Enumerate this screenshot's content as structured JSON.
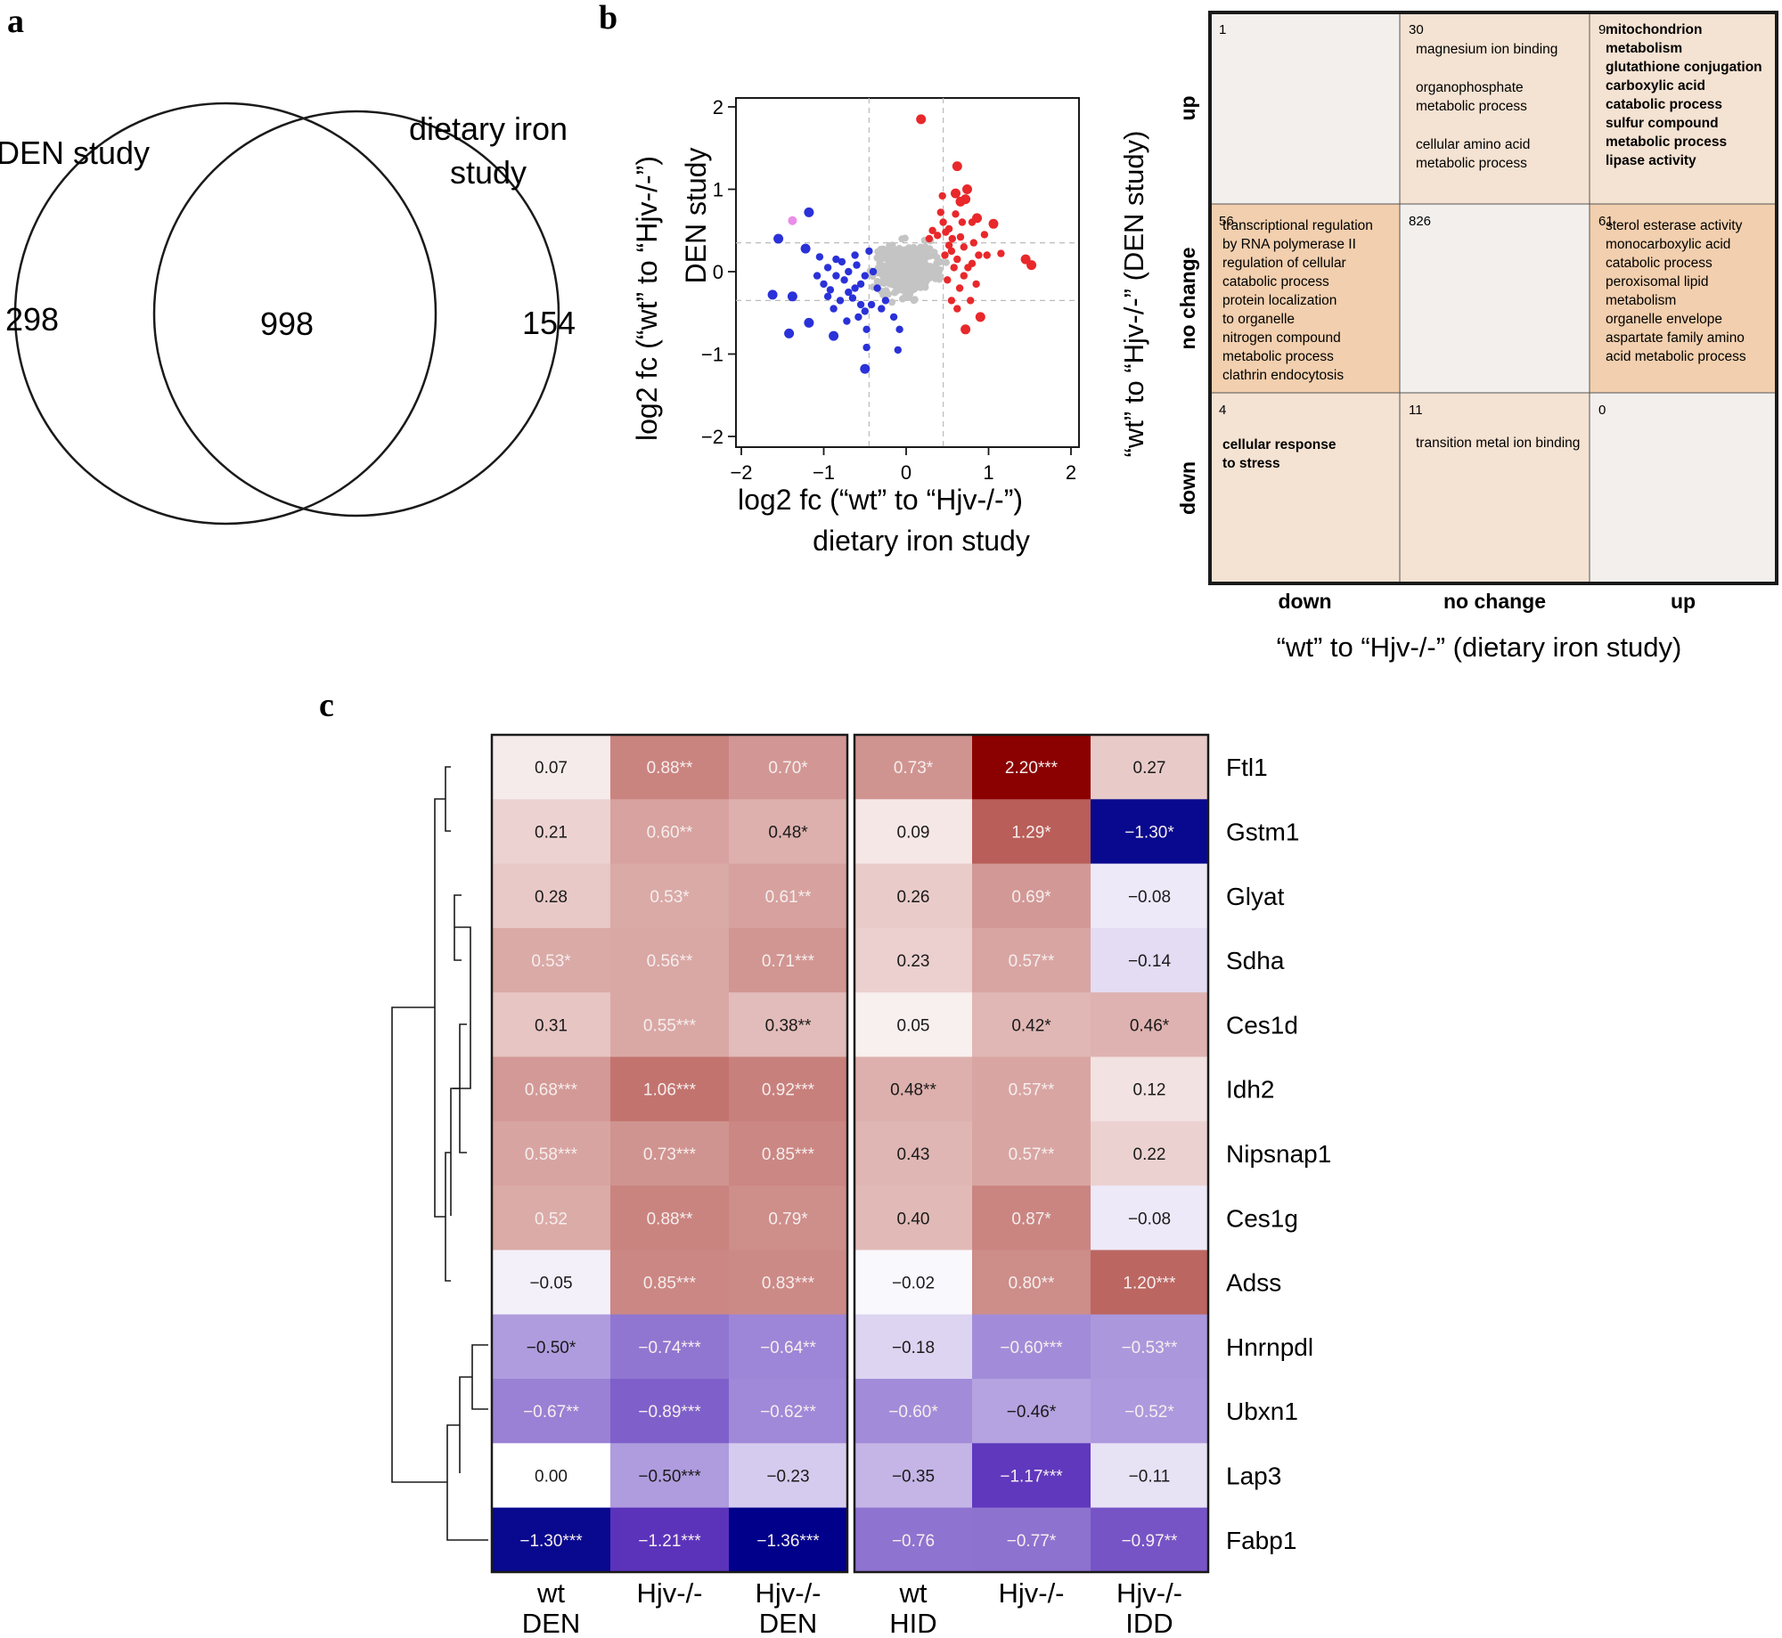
{
  "panels": {
    "a": {
      "letter": "a",
      "venn": {
        "set1_label": "DEN study",
        "set2_label_line1": "dietary iron",
        "set2_label_line2": "study",
        "only1": "298",
        "both": "998",
        "only2": "154"
      }
    },
    "b": {
      "letter": "b",
      "scatter": {
        "xlabel_line1": "log2 fc (“wt” to “Hjv-/-”)",
        "xlabel_line2": "dietary iron study",
        "ylabel_line1": "log2 fc (“wt” to “Hjv-/-”)",
        "ylabel_line2": "DEN study",
        "xticks": [
          "−2",
          "−1",
          "0",
          "1",
          "2"
        ],
        "yticks": [
          "2",
          "1",
          "0",
          "−1",
          "−2"
        ]
      },
      "grid": {
        "col_labels": [
          "down",
          "no change",
          "up"
        ],
        "row_labels": [
          "up",
          "no change",
          "down"
        ],
        "xlabel": "“wt” to “Hjv-/-” (dietary iron study)",
        "ylabel": "“wt” to “Hjv-/-” (DEN study)",
        "cells": [
          {
            "count": "1",
            "terms": []
          },
          {
            "count": "30",
            "terms": [
              "magnesium ion binding",
              "",
              "organophosphate",
              "metabolic process",
              "",
              "cellular amino acid",
              "metabolic process"
            ]
          },
          {
            "count": "9",
            "terms": [
              "mitochondrion",
              "metabolism",
              "glutathione conjugation",
              "carboxylic acid",
              "catabolic process",
              "sulfur compound",
              "metabolic process",
              "lipase activity"
            ]
          },
          {
            "count": "56",
            "terms": [
              "transcriptional regulation",
              "by RNA polymerase II",
              "regulation of cellular",
              "catabolic process",
              "protein localization",
              " to organelle",
              "nitrogen compound",
              "metabolic process",
              "clathrin endocytosis"
            ]
          },
          {
            "count": "826",
            "terms": []
          },
          {
            "count": "61",
            "terms": [
              "sterol esterase activity",
              "monocarboxylic acid",
              "catabolic process",
              "peroxisomal lipid",
              "metabolism",
              "organelle envelope",
              "aspartate family amino",
              "acid metabolic process"
            ]
          },
          {
            "count": "4",
            "terms": [
              "cellular response",
              "to stress"
            ]
          },
          {
            "count": "11",
            "terms": [
              "transition metal ion binding"
            ]
          },
          {
            "count": "0",
            "terms": []
          }
        ],
        "colors": [
          "#f2efed",
          "#f4e2d2",
          "#f4e2d2",
          "#f2cfae",
          "#f2efed",
          "#f2cfae",
          "#f4e2d2",
          "#f4e2d2",
          "#f2efed"
        ]
      }
    },
    "c": {
      "letter": "c"
    }
  },
  "chart_data": [
    {
      "type": "scatter",
      "panel": "b",
      "xlabel": "log2 fc (“wt” to “Hjv-/-”) dietary iron study",
      "ylabel": "log2 fc (“wt” to “Hjv-/-”) DEN study",
      "xlim": [
        -2.2,
        2.1
      ],
      "ylim": [
        -2.1,
        2.1
      ],
      "threshold_lines_x": [
        -0.45,
        0.45
      ],
      "threshold_lines_y": [
        -0.35,
        0.35
      ],
      "series": [
        {
          "name": "up",
          "color": "#e8282b",
          "points": [
            [
              0.18,
              1.85
            ],
            [
              0.62,
              1.28
            ],
            [
              0.44,
              0.92
            ],
            [
              0.72,
              0.88
            ],
            [
              0.6,
              0.95
            ],
            [
              0.86,
              0.65
            ],
            [
              1.06,
              0.58
            ],
            [
              0.32,
              0.5
            ],
            [
              0.48,
              0.48
            ],
            [
              0.38,
              0.44
            ],
            [
              0.52,
              0.52
            ],
            [
              0.66,
              0.42
            ],
            [
              0.8,
              0.6
            ],
            [
              0.95,
              0.45
            ],
            [
              1.15,
              0.22
            ],
            [
              1.45,
              0.15
            ],
            [
              1.52,
              0.08
            ],
            [
              0.55,
              0.25
            ],
            [
              0.62,
              0.15
            ],
            [
              0.75,
              0.05
            ],
            [
              0.7,
              0.3
            ],
            [
              0.58,
              0.05
            ],
            [
              0.88,
              0.2
            ],
            [
              0.5,
              -0.1
            ],
            [
              0.65,
              -0.2
            ],
            [
              0.78,
              -0.35
            ],
            [
              0.9,
              -0.55
            ],
            [
              0.72,
              -0.7
            ],
            [
              0.55,
              -0.35
            ],
            [
              0.42,
              0.72
            ],
            [
              0.28,
              0.4
            ],
            [
              0.68,
              0.6
            ],
            [
              0.82,
              0.35
            ],
            [
              0.6,
              0.7
            ],
            [
              0.74,
              1.0
            ],
            [
              0.52,
              0.32
            ],
            [
              0.45,
              0.6
            ],
            [
              0.98,
              0.2
            ],
            [
              0.85,
              -0.15
            ],
            [
              0.62,
              -0.45
            ],
            [
              0.47,
              0.2
            ],
            [
              0.7,
              -0.05
            ],
            [
              0.56,
              0.4
            ],
            [
              0.8,
              0.1
            ],
            [
              0.66,
              0.85
            ]
          ]
        },
        {
          "name": "down",
          "color": "#2a31d8",
          "points": [
            [
              -1.18,
              0.72
            ],
            [
              -1.22,
              0.28
            ],
            [
              -1.05,
              0.18
            ],
            [
              -0.95,
              0.05
            ],
            [
              -0.85,
              -0.05
            ],
            [
              -0.75,
              -0.1
            ],
            [
              -0.92,
              -0.22
            ],
            [
              -0.7,
              -0.25
            ],
            [
              -0.62,
              -0.2
            ],
            [
              -0.55,
              -0.15
            ],
            [
              -0.8,
              -0.35
            ],
            [
              -0.88,
              -0.45
            ],
            [
              -1.0,
              -0.15
            ],
            [
              -1.38,
              -0.3
            ],
            [
              -1.55,
              0.4
            ],
            [
              -1.62,
              -0.28
            ],
            [
              -1.42,
              -0.75
            ],
            [
              -1.18,
              -0.62
            ],
            [
              -0.88,
              -0.78
            ],
            [
              -0.5,
              -0.48
            ],
            [
              -0.48,
              -0.92
            ],
            [
              -0.5,
              -1.18
            ],
            [
              -0.48,
              -0.7
            ],
            [
              -0.42,
              -0.4
            ],
            [
              -0.55,
              -0.4
            ],
            [
              -0.15,
              -0.55
            ],
            [
              -0.1,
              -0.95
            ],
            [
              -0.08,
              -0.7
            ],
            [
              -0.25,
              -0.35
            ],
            [
              -0.45,
              0.25
            ],
            [
              -0.6,
              0.08
            ],
            [
              -0.7,
              0.0
            ],
            [
              -0.78,
              0.12
            ],
            [
              -0.65,
              -0.32
            ],
            [
              -0.95,
              -0.3
            ],
            [
              -1.08,
              -0.05
            ],
            [
              -0.4,
              0.0
            ],
            [
              -0.35,
              -0.2
            ],
            [
              -0.5,
              -0.05
            ],
            [
              -0.58,
              -0.55
            ],
            [
              -0.72,
              -0.6
            ],
            [
              -0.3,
              -0.45
            ],
            [
              -0.85,
              0.15
            ],
            [
              -0.62,
              0.2
            ]
          ]
        },
        {
          "name": "other",
          "color": "#ea8cea",
          "points": [
            [
              -1.38,
              0.62
            ]
          ]
        }
      ]
    },
    {
      "type": "heatmap",
      "panel": "c",
      "rows": [
        "Ftl1",
        "Gstm1",
        "Glyat",
        "Sdha",
        "Ces1d",
        "Idh2",
        "Nipsnap1",
        "Ces1g",
        "Adss",
        "Hnrnpdl",
        "Ubxn1",
        "Lap3",
        "Fabp1"
      ],
      "columns": [
        {
          "top": "wt",
          "bottom": "DEN"
        },
        {
          "top": "Hjv-/-",
          "bottom": ""
        },
        {
          "top": "Hjv-/-",
          "bottom": "DEN"
        },
        {
          "top": "wt",
          "bottom": "HID"
        },
        {
          "top": "Hjv-/-",
          "bottom": ""
        },
        {
          "top": "Hjv-/-",
          "bottom": "IDD"
        }
      ],
      "values": [
        [
          0.07,
          0.88,
          0.7,
          0.73,
          2.2,
          0.27
        ],
        [
          0.21,
          0.6,
          0.48,
          0.09,
          1.29,
          -1.3
        ],
        [
          0.28,
          0.53,
          0.61,
          0.26,
          0.69,
          -0.08
        ],
        [
          0.53,
          0.56,
          0.71,
          0.23,
          0.57,
          -0.14
        ],
        [
          0.31,
          0.55,
          0.38,
          0.05,
          0.42,
          0.46
        ],
        [
          0.68,
          1.06,
          0.92,
          0.48,
          0.57,
          0.12
        ],
        [
          0.58,
          0.73,
          0.85,
          0.43,
          0.57,
          0.22
        ],
        [
          0.52,
          0.88,
          0.79,
          0.4,
          0.87,
          -0.08
        ],
        [
          -0.05,
          0.85,
          0.83,
          -0.02,
          0.8,
          1.2
        ],
        [
          -0.5,
          -0.74,
          -0.64,
          -0.18,
          -0.6,
          -0.53
        ],
        [
          -0.67,
          -0.89,
          -0.62,
          -0.6,
          -0.46,
          -0.52
        ],
        [
          0.0,
          -0.5,
          -0.23,
          -0.35,
          -1.17,
          -0.11
        ],
        [
          -1.3,
          -1.21,
          -1.36,
          -0.76,
          -0.77,
          -0.97
        ]
      ],
      "labels": [
        [
          "0.07",
          "0.88**",
          "0.70*",
          "0.73*",
          "2.20***",
          "0.27"
        ],
        [
          "0.21",
          "0.60**",
          "0.48*",
          "0.09",
          "1.29*",
          "−1.30*"
        ],
        [
          "0.28",
          "0.53*",
          "0.61**",
          "0.26",
          "0.69*",
          "−0.08"
        ],
        [
          "0.53*",
          "0.56**",
          "0.71***",
          "0.23",
          "0.57**",
          "−0.14"
        ],
        [
          "0.31",
          "0.55***",
          "0.38**",
          "0.05",
          "0.42*",
          "0.46*"
        ],
        [
          "0.68***",
          "1.06***",
          "0.92***",
          "0.48**",
          "0.57**",
          "0.12"
        ],
        [
          "0.58***",
          "0.73***",
          "0.85***",
          "0.43",
          "0.57**",
          "0.22"
        ],
        [
          "0.52",
          "0.88**",
          "0.79*",
          "0.40",
          "0.87*",
          "−0.08"
        ],
        [
          "−0.05",
          "0.85***",
          "0.83***",
          "−0.02",
          "0.80**",
          "1.20***"
        ],
        [
          "−0.50*",
          "−0.74***",
          "−0.64**",
          "−0.18",
          "−0.60***",
          "−0.53**"
        ],
        [
          "−0.67**",
          "−0.89***",
          "−0.62**",
          "−0.60*",
          "−0.46*",
          "−0.52*"
        ],
        [
          "0.00",
          "−0.50***",
          "−0.23",
          "−0.35",
          "−1.17***",
          "−0.11"
        ],
        [
          "−1.30***",
          "−1.21***",
          "−1.36***",
          "−0.76",
          "−0.77*",
          "−0.97**"
        ]
      ],
      "light_text": [
        [
          false,
          true,
          true,
          true,
          true,
          false
        ],
        [
          false,
          true,
          false,
          false,
          true,
          true
        ],
        [
          false,
          true,
          true,
          false,
          true,
          false
        ],
        [
          true,
          true,
          true,
          false,
          true,
          false
        ],
        [
          false,
          true,
          false,
          false,
          false,
          false
        ],
        [
          true,
          true,
          true,
          false,
          true,
          false
        ],
        [
          true,
          true,
          true,
          false,
          true,
          false
        ],
        [
          true,
          true,
          true,
          false,
          true,
          false
        ],
        [
          false,
          true,
          true,
          false,
          true,
          true
        ],
        [
          false,
          true,
          true,
          false,
          true,
          true
        ],
        [
          true,
          true,
          true,
          true,
          false,
          true
        ],
        [
          false,
          false,
          false,
          false,
          true,
          false
        ],
        [
          true,
          true,
          true,
          true,
          true,
          true
        ]
      ],
      "color_scale": {
        "neg_max": -1.36,
        "pos_max": 2.2,
        "neg_color": "#00008b",
        "zero_color": "#ffffff",
        "pos_color": "#8b0000"
      }
    }
  ]
}
